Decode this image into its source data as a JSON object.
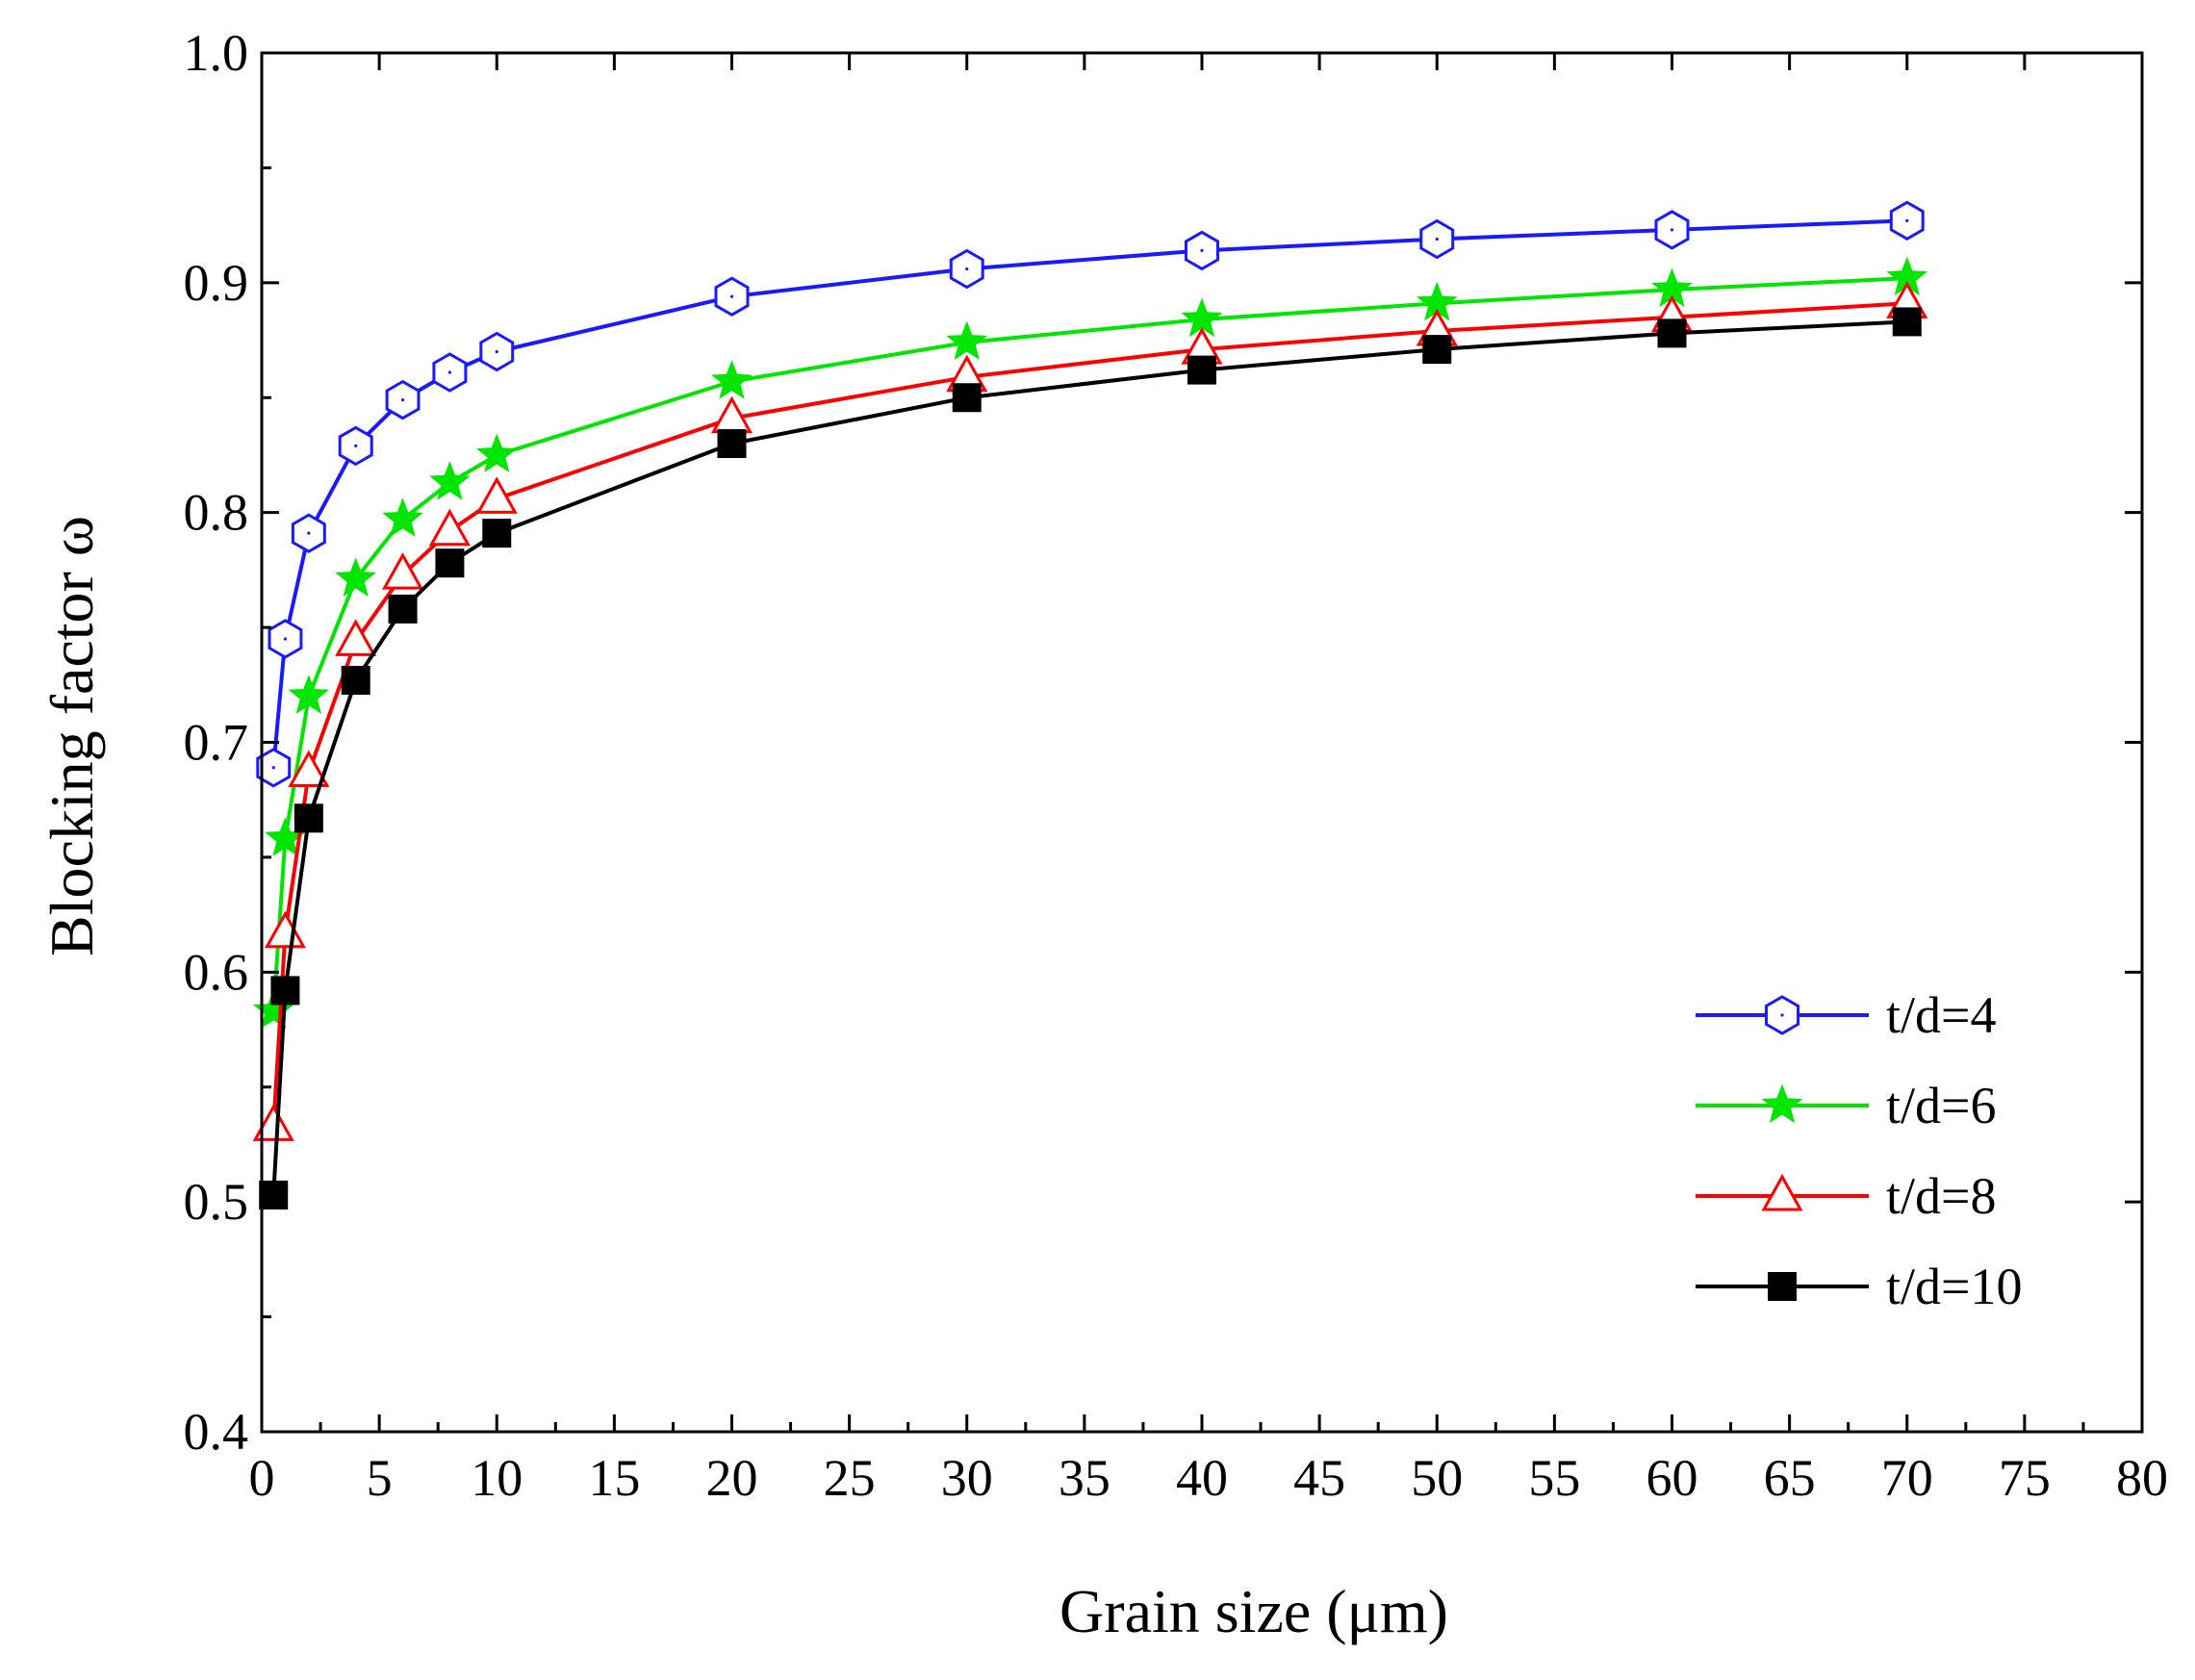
{
  "chart_data": {
    "type": "line",
    "title": "",
    "xlabel": "Grain size (μm)",
    "ylabel": "Blocking factor ω",
    "xlim": [
      0,
      80
    ],
    "ylim": [
      0.4,
      1.0
    ],
    "x_ticks": [
      "0",
      "5",
      "10",
      "15",
      "20",
      "25",
      "30",
      "35",
      "40",
      "45",
      "50",
      "55",
      "60",
      "65",
      "70",
      "75",
      "80"
    ],
    "y_ticks": [
      "0.4",
      "0.5",
      "0.6",
      "0.7",
      "0.8",
      "0.9",
      "1.0"
    ],
    "grid": false,
    "legend_position": "bottom-right",
    "x": [
      0.5,
      1,
      2,
      4,
      6,
      8,
      10,
      20,
      30,
      40,
      50,
      60,
      70
    ],
    "series": [
      {
        "name": "t/d=4",
        "color": "#1a1aff",
        "marker": "hexagon-open",
        "values": [
          0.689,
          0.745,
          0.791,
          0.829,
          0.849,
          0.861,
          0.87,
          0.894,
          0.906,
          0.914,
          0.919,
          0.923,
          0.927
        ]
      },
      {
        "name": "t/d=6",
        "color": "#00e600",
        "marker": "star-filled",
        "values": [
          0.583,
          0.658,
          0.72,
          0.771,
          0.797,
          0.813,
          0.825,
          0.857,
          0.874,
          0.884,
          0.891,
          0.897,
          0.902
        ]
      },
      {
        "name": "t/d=8",
        "color": "#ff0000",
        "marker": "triangle-open",
        "values": [
          0.533,
          0.617,
          0.687,
          0.744,
          0.773,
          0.792,
          0.806,
          0.841,
          0.859,
          0.871,
          0.879,
          0.885,
          0.891
        ]
      },
      {
        "name": "t/d=10",
        "color": "#000000",
        "marker": "square-filled",
        "values": [
          0.503,
          0.592,
          0.667,
          0.727,
          0.758,
          0.778,
          0.791,
          0.83,
          0.85,
          0.862,
          0.871,
          0.878,
          0.883
        ]
      }
    ]
  }
}
